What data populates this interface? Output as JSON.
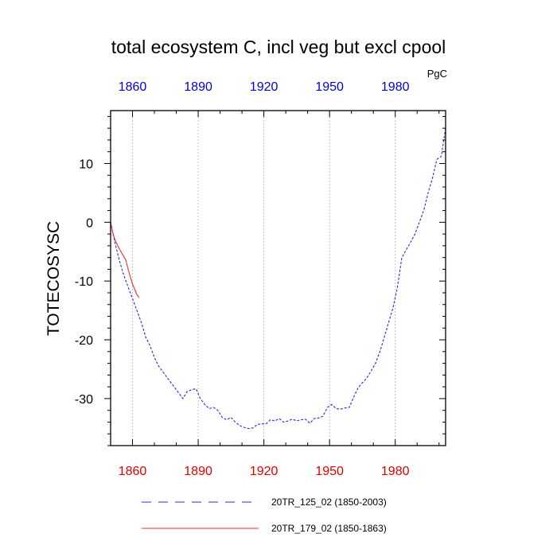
{
  "chart_data": {
    "type": "line",
    "title": "total ecosystem C, incl veg but excl cpool",
    "units": "PgC",
    "ylabel": "TOTECOSYSC",
    "xlabel": "",
    "xlim": [
      1850,
      2003
    ],
    "ylim": [
      -38,
      19
    ],
    "x_ticks": [
      1860,
      1890,
      1920,
      1950,
      1980
    ],
    "y_ticks": [
      10,
      0,
      -10,
      -20,
      -30
    ],
    "grid": "vertical dashed at x ticks",
    "series": [
      {
        "name": "20TR_125_02 (1850-2003)",
        "color": "#2b2bd9",
        "style": "dashed",
        "x": [
          1850,
          1852,
          1854,
          1856,
          1858,
          1860,
          1862,
          1864,
          1866,
          1868,
          1870,
          1872,
          1874,
          1876,
          1878,
          1880,
          1882,
          1883,
          1885,
          1887,
          1889,
          1891,
          1893,
          1895,
          1897,
          1899,
          1901,
          1903,
          1905,
          1907,
          1909,
          1911,
          1913,
          1915,
          1917,
          1919,
          1921,
          1923,
          1925,
          1927,
          1929,
          1931,
          1933,
          1935,
          1937,
          1939,
          1941,
          1943,
          1945,
          1947,
          1949,
          1951,
          1953,
          1955,
          1957,
          1959,
          1961,
          1963,
          1965,
          1967,
          1969,
          1971,
          1973,
          1975,
          1977,
          1979,
          1981,
          1983,
          1985,
          1987,
          1989,
          1991,
          1993,
          1995,
          1997,
          1999,
          2001,
          2003
        ],
        "y": [
          0,
          -3.5,
          -6.5,
          -9,
          -11,
          -13,
          -15,
          -17,
          -19.5,
          -21,
          -23,
          -24.5,
          -25.5,
          -26.5,
          -27.5,
          -28.5,
          -29.5,
          -30,
          -28.8,
          -28.5,
          -28.3,
          -30,
          -31,
          -31.7,
          -31.5,
          -32,
          -33.2,
          -33.6,
          -33.2,
          -34,
          -34.6,
          -34.9,
          -35.1,
          -35,
          -34.4,
          -34.3,
          -34.3,
          -33.6,
          -33.8,
          -33.4,
          -34,
          -33.8,
          -33.5,
          -33.8,
          -33.6,
          -33.5,
          -34.2,
          -33.4,
          -33.3,
          -33,
          -31.5,
          -31,
          -31.7,
          -31.8,
          -31.6,
          -31.5,
          -29.8,
          -28.2,
          -27.3,
          -26.5,
          -25.3,
          -24,
          -22,
          -19.5,
          -17,
          -14.5,
          -11,
          -6,
          -4.7,
          -3.4,
          -2,
          0,
          2,
          5,
          7.5,
          10.7,
          11.2,
          16
        ]
      },
      {
        "name": "20TR_179_02 (1850-1863)",
        "color": "#e83030",
        "style": "solid",
        "x": [
          1850,
          1851,
          1852,
          1853,
          1854,
          1855,
          1856,
          1857,
          1858,
          1859,
          1860,
          1861,
          1862,
          1863
        ],
        "y": [
          0,
          -1.8,
          -3,
          -3.8,
          -4.5,
          -5.2,
          -5.8,
          -6.5,
          -8,
          -9.3,
          -10.5,
          -11.4,
          -12.3,
          -12.8
        ]
      }
    ]
  }
}
